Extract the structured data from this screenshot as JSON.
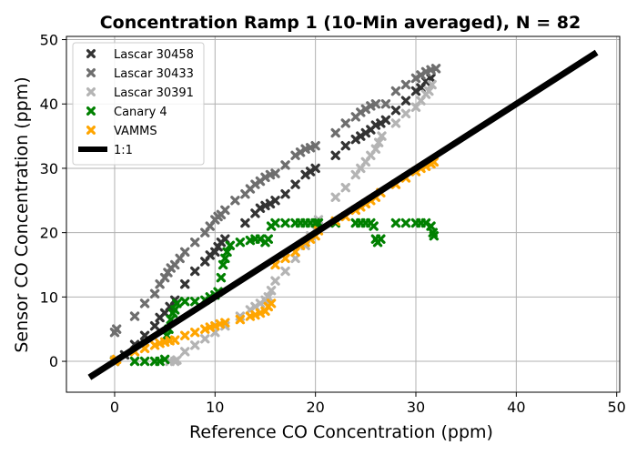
{
  "chart_data": {
    "type": "scatter",
    "title": "Concentration Ramp 1 (10-Min averaged), N = 82",
    "xlabel": "Reference CO Concentration (ppm)",
    "ylabel": "Sensor CO Concentration (ppm)",
    "xlim": [
      -4.8,
      50.3
    ],
    "ylim": [
      -4.8,
      50.5
    ],
    "xticks": [
      "0",
      "10",
      "20",
      "30",
      "40",
      "50"
    ],
    "yticks": [
      "0",
      "10",
      "20",
      "30",
      "40",
      "50"
    ],
    "grid": true,
    "legend_position": "top-left",
    "series": [
      {
        "name": "Lascar 30458",
        "color": "#333333",
        "marker": "x",
        "points": [
          [
            0,
            0
          ],
          [
            1,
            1
          ],
          [
            2,
            2.6
          ],
          [
            3,
            4
          ],
          [
            4,
            5.5
          ],
          [
            4.5,
            6.8
          ],
          [
            5,
            7.5
          ],
          [
            5.5,
            8.5
          ],
          [
            6,
            9.5
          ],
          [
            7,
            12
          ],
          [
            8,
            14
          ],
          [
            9,
            15.5
          ],
          [
            9.5,
            16.5
          ],
          [
            10,
            17
          ],
          [
            10.3,
            17.8
          ],
          [
            10.6,
            18.5
          ],
          [
            11,
            19
          ],
          [
            13,
            21.5
          ],
          [
            14,
            23
          ],
          [
            14.5,
            23.8
          ],
          [
            15,
            24.2
          ],
          [
            15.5,
            24.5
          ],
          [
            16,
            25
          ],
          [
            17,
            26
          ],
          [
            18,
            27.5
          ],
          [
            19,
            29
          ],
          [
            19.5,
            29.5
          ],
          [
            20,
            30
          ],
          [
            22,
            32
          ],
          [
            23,
            33.5
          ],
          [
            24,
            34.5
          ],
          [
            24.5,
            35
          ],
          [
            25,
            35.5
          ],
          [
            25.5,
            36
          ],
          [
            26,
            36.7
          ],
          [
            26.5,
            37
          ],
          [
            27,
            37.5
          ],
          [
            28,
            39
          ],
          [
            29,
            40.5
          ],
          [
            30,
            42
          ],
          [
            30.5,
            42.5
          ],
          [
            31,
            43.5
          ],
          [
            31.5,
            44
          ]
        ]
      },
      {
        "name": "Lascar 30433",
        "color": "#6e6e6e",
        "marker": "x",
        "points": [
          [
            0,
            4.5
          ],
          [
            0.2,
            5
          ],
          [
            2,
            7
          ],
          [
            3,
            9
          ],
          [
            4,
            10.5
          ],
          [
            4.5,
            12
          ],
          [
            5,
            13
          ],
          [
            5.3,
            13.8
          ],
          [
            5.6,
            14.5
          ],
          [
            6,
            15
          ],
          [
            6.5,
            16
          ],
          [
            7,
            17
          ],
          [
            8,
            18.5
          ],
          [
            9,
            20
          ],
          [
            9.5,
            21
          ],
          [
            10,
            22
          ],
          [
            10.3,
            22.5
          ],
          [
            10.6,
            22.8
          ],
          [
            11,
            23.5
          ],
          [
            12,
            25
          ],
          [
            13,
            26
          ],
          [
            13.5,
            26.8
          ],
          [
            14,
            27.5
          ],
          [
            14.5,
            28
          ],
          [
            15,
            28.6
          ],
          [
            15.5,
            29
          ],
          [
            16,
            29.2
          ],
          [
            17,
            30.5
          ],
          [
            18,
            32
          ],
          [
            18.5,
            32.5
          ],
          [
            19,
            33
          ],
          [
            19.5,
            33.2
          ],
          [
            20,
            33.5
          ],
          [
            22,
            35.5
          ],
          [
            23,
            37
          ],
          [
            24,
            38
          ],
          [
            24.5,
            38.7
          ],
          [
            25,
            39.2
          ],
          [
            25.5,
            39.7
          ],
          [
            26,
            40
          ],
          [
            27,
            40
          ],
          [
            28,
            42
          ],
          [
            29,
            43
          ],
          [
            30,
            44
          ],
          [
            30.5,
            44.5
          ],
          [
            31,
            45
          ],
          [
            31.5,
            45.3
          ],
          [
            32,
            45.5
          ]
        ]
      },
      {
        "name": "Lascar 30391",
        "color": "#b4b4b4",
        "marker": "x",
        "points": [
          [
            0,
            0.2
          ],
          [
            5.5,
            0
          ],
          [
            6,
            0
          ],
          [
            6.2,
            0.2
          ],
          [
            7,
            1.5
          ],
          [
            8,
            2.5
          ],
          [
            9,
            3.5
          ],
          [
            10,
            4.5
          ],
          [
            11,
            5.5
          ],
          [
            12.5,
            7
          ],
          [
            13.5,
            8
          ],
          [
            14,
            8.5
          ],
          [
            14.5,
            9
          ],
          [
            15,
            9.5
          ],
          [
            15.3,
            10
          ],
          [
            15.6,
            11
          ],
          [
            16,
            12.5
          ],
          [
            17,
            14
          ],
          [
            18,
            16
          ],
          [
            19,
            18
          ],
          [
            19.5,
            19.5
          ],
          [
            20,
            20.5
          ],
          [
            20.3,
            22
          ],
          [
            22,
            25.5
          ],
          [
            23,
            27
          ],
          [
            24,
            29
          ],
          [
            24.5,
            30
          ],
          [
            25,
            31
          ],
          [
            25.5,
            32
          ],
          [
            26,
            33
          ],
          [
            26.3,
            34
          ],
          [
            26.6,
            35
          ],
          [
            28,
            37
          ],
          [
            29,
            38.5
          ],
          [
            30,
            39.5
          ],
          [
            30.5,
            40.5
          ],
          [
            31,
            41.5
          ],
          [
            31.3,
            42
          ],
          [
            31.6,
            43
          ]
        ]
      },
      {
        "name": "Canary 4",
        "color": "#008000",
        "marker": "x",
        "points": [
          [
            0,
            0
          ],
          [
            2,
            0
          ],
          [
            3,
            0
          ],
          [
            4,
            0
          ],
          [
            4.5,
            0
          ],
          [
            5,
            0.3
          ],
          [
            5.2,
            4
          ],
          [
            5.4,
            5
          ],
          [
            5.6,
            6.5
          ],
          [
            5.8,
            7.5
          ],
          [
            6,
            8
          ],
          [
            6.2,
            9
          ],
          [
            7,
            9.3
          ],
          [
            8,
            9.3
          ],
          [
            9,
            9.5
          ],
          [
            9.5,
            10
          ],
          [
            10,
            10.3
          ],
          [
            10.3,
            10.8
          ],
          [
            10.6,
            13
          ],
          [
            10.8,
            15
          ],
          [
            11,
            16
          ],
          [
            11.2,
            17
          ],
          [
            11.5,
            18
          ],
          [
            12.5,
            18.5
          ],
          [
            13.5,
            18.8
          ],
          [
            14,
            19
          ],
          [
            14.5,
            19
          ],
          [
            15,
            18.5
          ],
          [
            15.3,
            19
          ],
          [
            15.6,
            21
          ],
          [
            16,
            21.5
          ],
          [
            17,
            21.5
          ],
          [
            18,
            21.5
          ],
          [
            18.5,
            21.5
          ],
          [
            19,
            21.5
          ],
          [
            19.5,
            21.5
          ],
          [
            20,
            21.5
          ],
          [
            20.3,
            21.5
          ],
          [
            22,
            21.5
          ],
          [
            24,
            21.5
          ],
          [
            24.5,
            21.5
          ],
          [
            25,
            21.5
          ],
          [
            25.5,
            21.5
          ],
          [
            25.8,
            21
          ],
          [
            26,
            19
          ],
          [
            26.2,
            18.5
          ],
          [
            26.5,
            19
          ],
          [
            28,
            21.5
          ],
          [
            29,
            21.5
          ],
          [
            30,
            21.5
          ],
          [
            30.5,
            21.5
          ],
          [
            31,
            21.5
          ],
          [
            31.5,
            21
          ],
          [
            31.7,
            20
          ],
          [
            31.8,
            19.5
          ]
        ]
      },
      {
        "name": "VAMMS",
        "color": "#ffa500",
        "marker": "x",
        "points": [
          [
            0,
            0
          ],
          [
            0.2,
            0.3
          ],
          [
            2,
            1.5
          ],
          [
            3,
            2
          ],
          [
            4,
            2.5
          ],
          [
            4.5,
            2.8
          ],
          [
            5,
            3
          ],
          [
            5.5,
            3.2
          ],
          [
            6,
            3.3
          ],
          [
            7,
            4
          ],
          [
            8,
            4.5
          ],
          [
            9,
            5
          ],
          [
            9.5,
            5.3
          ],
          [
            10,
            5.5
          ],
          [
            10.5,
            5.8
          ],
          [
            11,
            6
          ],
          [
            12.5,
            6.5
          ],
          [
            13.5,
            7
          ],
          [
            14,
            7.2
          ],
          [
            14.5,
            7.5
          ],
          [
            15,
            7.8
          ],
          [
            15.3,
            8.5
          ],
          [
            15.6,
            9
          ],
          [
            16,
            15
          ],
          [
            17,
            16
          ],
          [
            18,
            17
          ],
          [
            18.5,
            18
          ],
          [
            19,
            18.5
          ],
          [
            19.5,
            19
          ],
          [
            20,
            19.5
          ],
          [
            20.3,
            20.3
          ],
          [
            22,
            21.8
          ],
          [
            23,
            22.5
          ],
          [
            24,
            23.5
          ],
          [
            24.5,
            24
          ],
          [
            25,
            24.5
          ],
          [
            25.5,
            25
          ],
          [
            26,
            25.5
          ],
          [
            26.5,
            26.2
          ],
          [
            28,
            27.5
          ],
          [
            29,
            28.5
          ],
          [
            30,
            29.5
          ],
          [
            30.5,
            30
          ],
          [
            31,
            30.3
          ],
          [
            31.5,
            30.7
          ],
          [
            31.8,
            31
          ]
        ]
      },
      {
        "name": "1:1",
        "color": "#000000",
        "marker": "line",
        "points": [
          [
            -2.5,
            -2.5
          ],
          [
            48,
            48
          ]
        ]
      }
    ]
  }
}
